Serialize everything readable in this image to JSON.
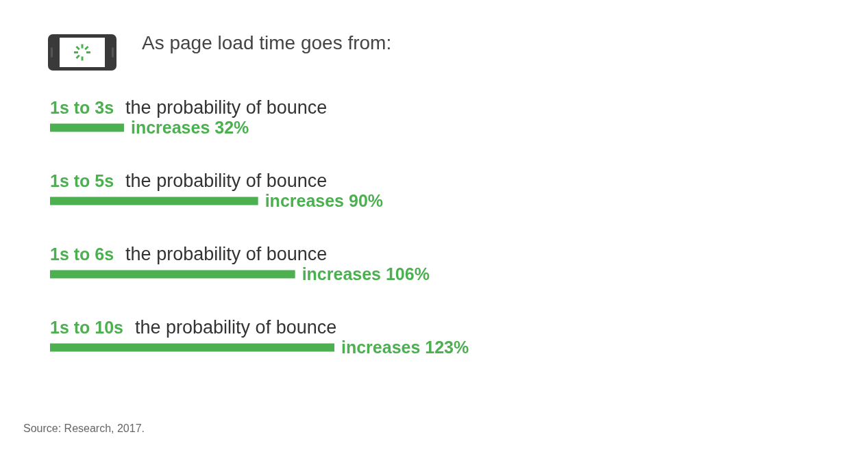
{
  "chart_data": {
    "type": "bar",
    "orientation": "horizontal",
    "title": "As page load time goes from:",
    "categories": [
      "1s to 3s",
      "1s to 5s",
      "1s to 6s",
      "1s to 10s"
    ],
    "values": [
      32,
      90,
      106,
      123
    ],
    "value_labels": [
      "increases 32%",
      "increases 90%",
      "increases 106%",
      "increases 123%"
    ],
    "color": "#4caf50",
    "annotations": [
      "the probability of bounce",
      "the probability of bounce",
      "the probability of bounce",
      "the probability of bounce",
      "Source: Research, 2017."
    ]
  }
}
